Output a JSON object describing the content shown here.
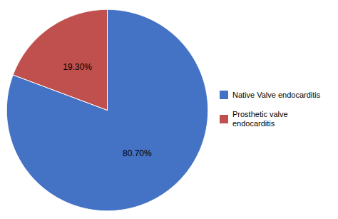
{
  "chart_data": {
    "type": "pie",
    "categories": [
      "Native Valve endocarditis",
      "Prosthetic valve\nendocarditis"
    ],
    "values": [
      80.7,
      19.3
    ],
    "value_labels": [
      "80.70%",
      "19.30%"
    ],
    "colors": [
      "#4472C4",
      "#C0504D"
    ],
    "data_labels": true,
    "legend": "right"
  }
}
